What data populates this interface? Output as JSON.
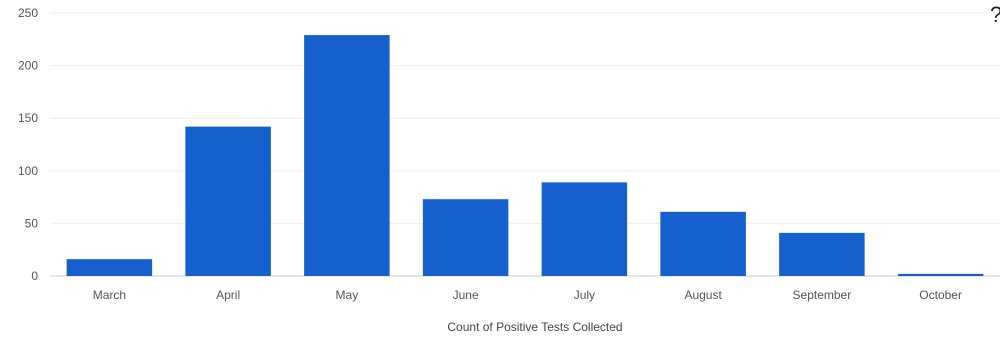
{
  "chart_data": {
    "type": "bar",
    "title": "",
    "xlabel": "Count of Positive Tests Collected",
    "ylabel": "",
    "categories": [
      "March",
      "April",
      "May",
      "June",
      "July",
      "August",
      "September",
      "October"
    ],
    "values": [
      16,
      142,
      229,
      73,
      89,
      61,
      41,
      2
    ],
    "ylim": [
      0,
      250
    ],
    "yticks": [
      0,
      50,
      100,
      150,
      200,
      250
    ],
    "grid": "horizontal",
    "legend": "none",
    "bar_color": "#1560cc"
  },
  "corner_glyph": "?"
}
